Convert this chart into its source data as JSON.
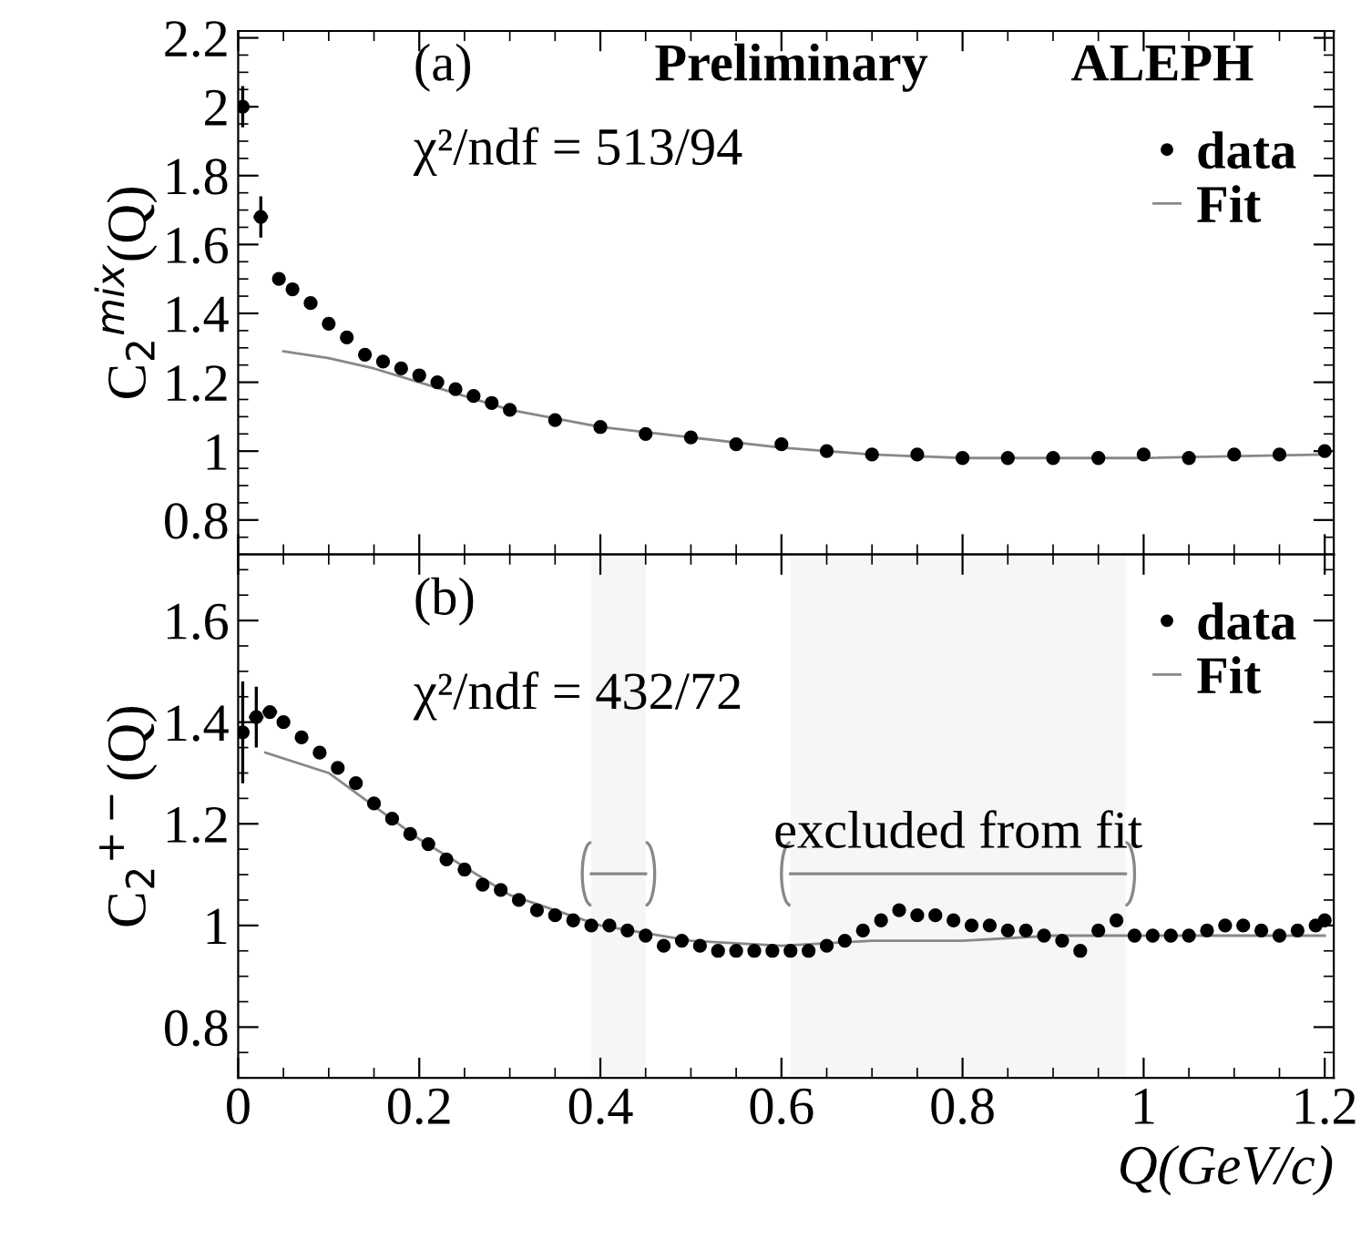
{
  "chart_data": [
    {
      "type": "scatter",
      "ylabel": "C$_{2}$$^{mix}$(Q)",
      "xlim": [
        0,
        1.21
      ],
      "ylim": [
        0.7,
        2.22
      ],
      "xticks": [
        {
          "value": 0,
          "label": null
        },
        {
          "value": 0.2,
          "label": null
        },
        {
          "value": 0.4,
          "label": null
        },
        {
          "value": 0.6,
          "label": null
        },
        {
          "value": 0.8,
          "label": null
        },
        {
          "value": 1,
          "label": null
        },
        {
          "value": 1.2,
          "label": null
        }
      ],
      "yticks": [
        {
          "value": 0.8,
          "label": "0.8"
        },
        1,
        {
          "value": 1.2,
          "label": "1.2"
        },
        {
          "value": 1.4,
          "label": "1.4"
        },
        {
          "value": 1.6,
          "label": "1.6"
        },
        {
          "value": 1.8,
          "label": "1.8"
        },
        2,
        {
          "value": 2.2,
          "label": "2.2"
        }
      ],
      "tick_labels": "y",
      "legend": "top right",
      "annotations": [
        "(a)",
        "Preliminary",
        "ALEPH",
        "χ²/ndf = 513/94"
      ],
      "series": [
        {
          "name": "data",
          "marker": "circle",
          "color": "#000000",
          "x": [
            0.005,
            0.025,
            0.045,
            0.06,
            0.08,
            0.1,
            0.12,
            0.14,
            0.16,
            0.18,
            0.2,
            0.22,
            0.24,
            0.26,
            0.28,
            0.3,
            0.35,
            0.4,
            0.45,
            0.5,
            0.55,
            0.6,
            0.65,
            0.7,
            0.75,
            0.8,
            0.85,
            0.9,
            0.95,
            1.0,
            1.05,
            1.1,
            1.15,
            1.2
          ],
          "values": [
            2.0,
            1.68,
            1.5,
            1.47,
            1.43,
            1.37,
            1.33,
            1.28,
            1.26,
            1.24,
            1.22,
            1.2,
            1.18,
            1.16,
            1.14,
            1.12,
            1.09,
            1.07,
            1.05,
            1.04,
            1.02,
            1.02,
            1.0,
            0.99,
            0.99,
            0.98,
            0.98,
            0.98,
            0.98,
            0.99,
            0.98,
            0.99,
            0.99,
            1.0
          ],
          "errors": [
            0.06,
            0.06,
            null,
            null,
            null,
            null,
            null,
            null,
            null,
            null,
            null,
            null,
            null,
            null,
            null,
            null,
            null,
            null,
            null,
            null,
            null,
            null,
            null,
            null,
            null,
            null,
            null,
            null,
            null,
            null,
            null,
            null,
            null,
            null
          ],
          "xerrors": [
            null,
            0.008,
            null,
            null,
            null,
            null,
            null,
            null,
            null,
            null,
            null,
            null,
            null,
            null,
            null,
            null,
            null,
            null,
            null,
            null,
            null,
            null,
            null,
            null,
            null,
            null,
            null,
            null,
            null,
            null,
            null,
            null,
            null,
            null
          ]
        },
        {
          "name": "Fit",
          "type": "line",
          "line_style": "solid",
          "color": "#888888",
          "x": [
            0.05,
            0.1,
            0.15,
            0.2,
            0.3,
            0.4,
            0.5,
            0.6,
            0.7,
            0.8,
            1.0,
            1.2
          ],
          "values": [
            1.29,
            1.27,
            1.24,
            1.2,
            1.12,
            1.07,
            1.04,
            1.01,
            0.99,
            0.98,
            0.98,
            0.99
          ]
        }
      ]
    },
    {
      "type": "scatter",
      "ylabel": "C$_{2}$$^{+−}$(Q)",
      "xlabel": "Q(GeV/c)",
      "xlim": [
        0,
        1.21
      ],
      "ylim": [
        0.7,
        1.73
      ],
      "xticks": [
        0,
        {
          "value": 0.2,
          "label": "0.2"
        },
        {
          "value": 0.4,
          "label": "0.4"
        },
        {
          "value": 0.6,
          "label": "0.6"
        },
        {
          "value": 0.8,
          "label": "0.8"
        },
        1,
        {
          "value": 1.2,
          "label": "1.2"
        }
      ],
      "yticks": [
        {
          "value": 0.8,
          "label": "0.8"
        },
        1,
        {
          "value": 1.2,
          "label": "1.2"
        },
        {
          "value": 1.4,
          "label": "1.4"
        },
        {
          "value": 1.6,
          "label": "1.6"
        }
      ],
      "legend": "top right",
      "annotations": [
        "(b)",
        "χ²/ndf = 432/72"
      ],
      "bands": [
        {
          "axis": "x",
          "from": 0.39,
          "to": 0.45,
          "color": "#888888"
        },
        {
          "axis": "x",
          "from": 0.61,
          "to": 0.98,
          "color": "#888888",
          "label": "excluded from fit"
        }
      ],
      "series": [
        {
          "name": "data",
          "marker": "circle",
          "color": "#000000",
          "x": [
            0.005,
            0.02,
            0.035,
            0.05,
            0.07,
            0.09,
            0.11,
            0.13,
            0.15,
            0.17,
            0.19,
            0.21,
            0.23,
            0.25,
            0.27,
            0.29,
            0.31,
            0.33,
            0.35,
            0.37,
            0.39,
            0.41,
            0.43,
            0.45,
            0.47,
            0.49,
            0.51,
            0.53,
            0.55,
            0.57,
            0.59,
            0.61,
            0.63,
            0.65,
            0.67,
            0.69,
            0.71,
            0.73,
            0.75,
            0.77,
            0.79,
            0.81,
            0.83,
            0.85,
            0.87,
            0.89,
            0.91,
            0.93,
            0.95,
            0.97,
            0.99,
            1.01,
            1.03,
            1.05,
            1.07,
            1.09,
            1.11,
            1.13,
            1.15,
            1.17,
            1.19,
            1.2
          ],
          "values": [
            1.38,
            1.41,
            1.42,
            1.4,
            1.37,
            1.34,
            1.31,
            1.28,
            1.24,
            1.21,
            1.18,
            1.16,
            1.13,
            1.11,
            1.08,
            1.07,
            1.05,
            1.03,
            1.02,
            1.01,
            1.0,
            1.0,
            0.99,
            0.98,
            0.96,
            0.97,
            0.96,
            0.95,
            0.95,
            0.95,
            0.95,
            0.95,
            0.95,
            0.96,
            0.97,
            0.99,
            1.01,
            1.03,
            1.02,
            1.02,
            1.01,
            1.0,
            1.0,
            0.99,
            0.99,
            0.98,
            0.97,
            0.95,
            0.99,
            1.01,
            0.98,
            0.98,
            0.98,
            0.98,
            0.99,
            1.0,
            1.0,
            0.99,
            0.98,
            0.99,
            1.0,
            1.01
          ],
          "errors": [
            0.1,
            0.06,
            null,
            null,
            null,
            null,
            null,
            null,
            null,
            null,
            null,
            null,
            null,
            null,
            null,
            null,
            null,
            null,
            null,
            null,
            null,
            null,
            null,
            null,
            null,
            null,
            null,
            null,
            null,
            null,
            null,
            null,
            null,
            null,
            null,
            null,
            null,
            null,
            null,
            null,
            null,
            null,
            null,
            null,
            null,
            null,
            null,
            null,
            null,
            null,
            null,
            null,
            null,
            null,
            null,
            null,
            null,
            null,
            null,
            null,
            null,
            null
          ],
          "xerrors": [
            null,
            0.008,
            0.008,
            null,
            null,
            null,
            null,
            null,
            null,
            null,
            null,
            null,
            null,
            null,
            null,
            null,
            null,
            null,
            null,
            null,
            null,
            null,
            null,
            null,
            null,
            null,
            null,
            null,
            null,
            null,
            null,
            null,
            null,
            null,
            null,
            null,
            null,
            null,
            null,
            null,
            null,
            null,
            null,
            null,
            null,
            null,
            null,
            null,
            null,
            null,
            null,
            null,
            null,
            null,
            null,
            null,
            null,
            null,
            null,
            null,
            null,
            null
          ]
        },
        {
          "name": "Fit",
          "type": "line",
          "line_style": "solid",
          "color": "#888888",
          "x": [
            0.03,
            0.1,
            0.2,
            0.3,
            0.4,
            0.5,
            0.6,
            0.7,
            0.8,
            0.9,
            1.0,
            1.2
          ],
          "values": [
            1.34,
            1.3,
            1.17,
            1.06,
            1.0,
            0.97,
            0.96,
            0.97,
            0.97,
            0.98,
            0.98,
            0.98
          ]
        }
      ]
    }
  ]
}
